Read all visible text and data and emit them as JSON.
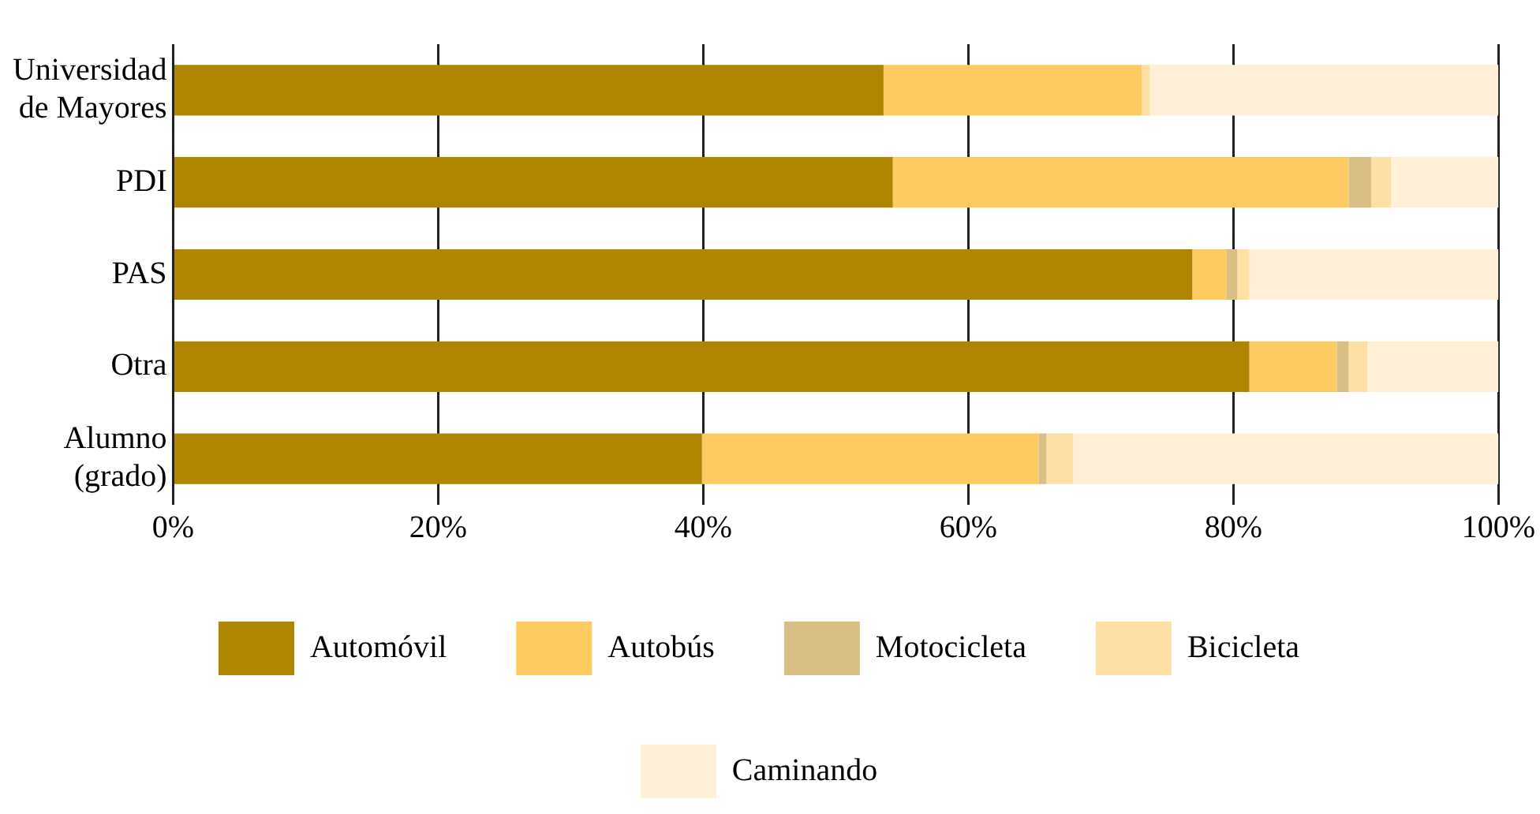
{
  "chart_data": {
    "type": "bar",
    "orientation": "horizontal",
    "stacked": true,
    "categories": [
      "Universidad de Mayores",
      "PDI",
      "PAS",
      "Otra",
      "Alumno (grado)"
    ],
    "series": [
      {
        "name": "Automóvil",
        "color": "#b08500",
        "values": [
          53.6,
          54.3,
          76.9,
          81.2,
          39.9
        ]
      },
      {
        "name": "Autobús",
        "color": "#fdcb61",
        "values": [
          19.5,
          34.4,
          2.6,
          6.6,
          25.4
        ]
      },
      {
        "name": "Motocicleta",
        "color": "#d9bf85",
        "values": [
          0,
          1.7,
          0.8,
          0.9,
          0.6
        ]
      },
      {
        "name": "Bicicleta",
        "color": "#fee0a5",
        "values": [
          0.6,
          1.5,
          0.9,
          1.4,
          2.0
        ]
      },
      {
        "name": "Caminando",
        "color": "#feefd6",
        "values": [
          26.3,
          8.1,
          18.8,
          9.9,
          32.1
        ]
      }
    ],
    "xlim": [
      0,
      100
    ],
    "xticks": [
      {
        "value": 0,
        "label": "0%"
      },
      {
        "value": 20,
        "label": "20%"
      },
      {
        "value": 40,
        "label": "40%"
      },
      {
        "value": 60,
        "label": "60%"
      },
      {
        "value": 80,
        "label": "80%"
      },
      {
        "value": 100,
        "label": "100%"
      }
    ],
    "grid": "x",
    "legend": "bottom"
  }
}
